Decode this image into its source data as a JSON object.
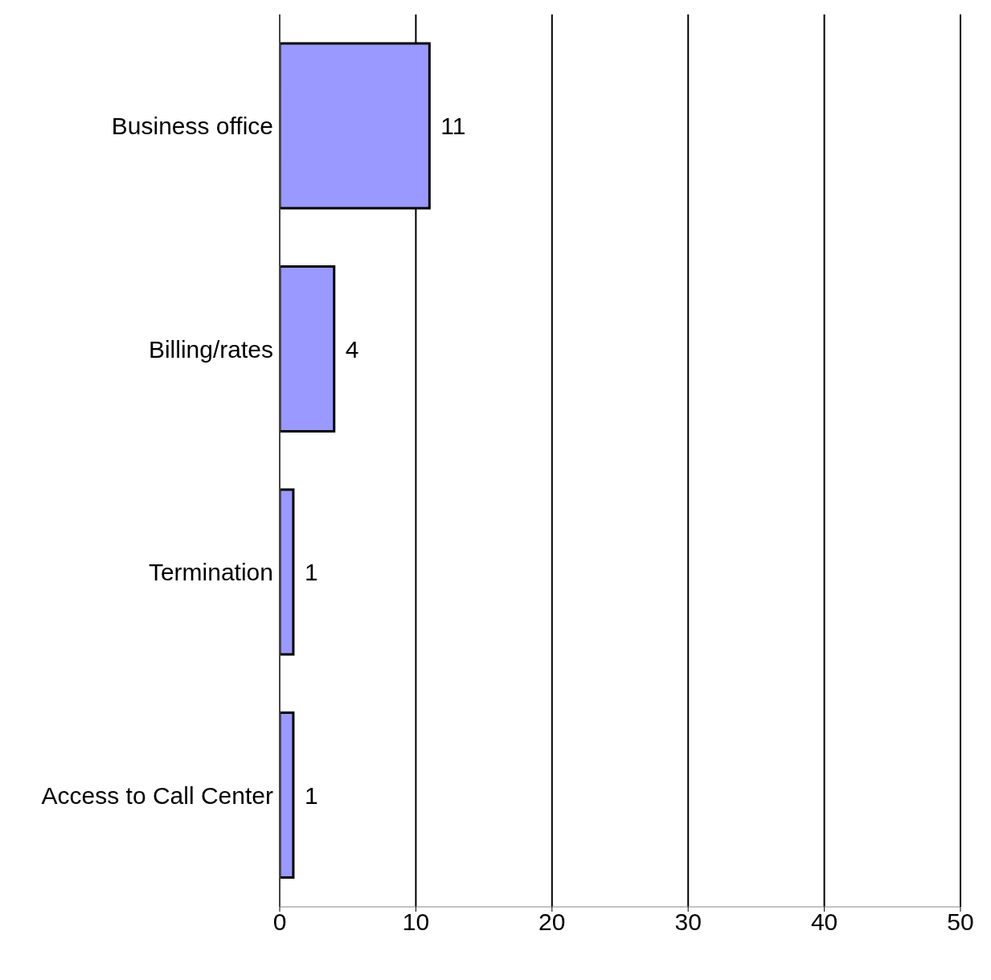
{
  "chart_data": {
    "type": "bar",
    "orientation": "horizontal",
    "categories": [
      "Business office",
      "Billing/rates",
      "Termination",
      "Access to Call Center"
    ],
    "values": [
      11,
      4,
      1,
      1
    ],
    "color": "#9999ff",
    "xlim": [
      0,
      50
    ],
    "xticks": [
      0,
      10,
      20,
      30,
      40,
      50
    ],
    "grid": "x",
    "data_labels": true
  }
}
